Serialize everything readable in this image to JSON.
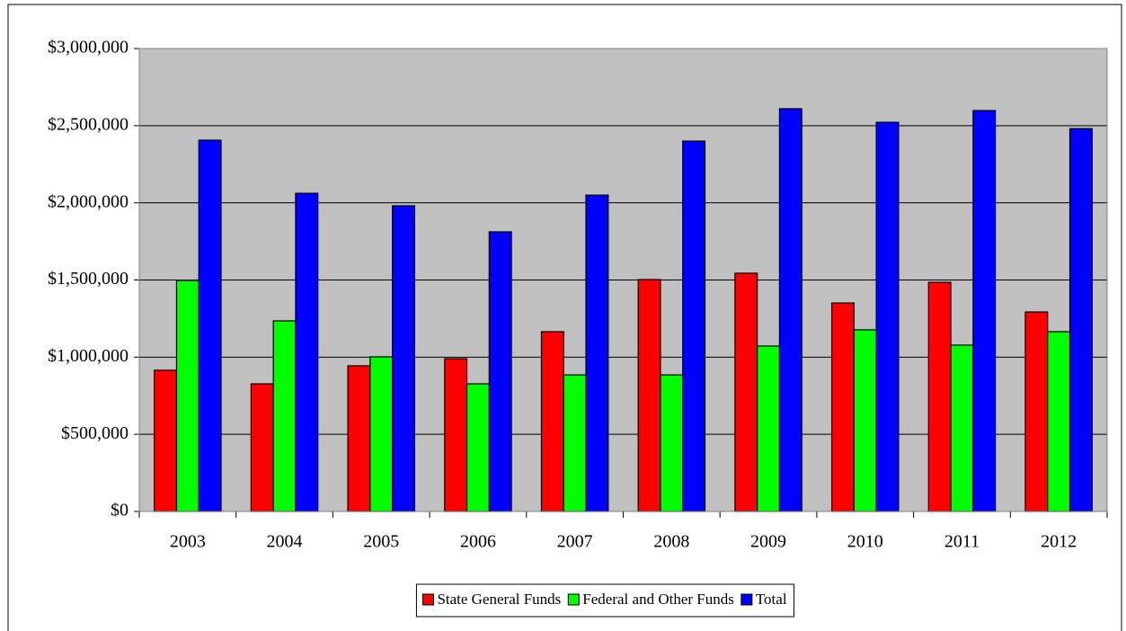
{
  "chart_data": {
    "type": "bar",
    "categories": [
      "2003",
      "2004",
      "2005",
      "2006",
      "2007",
      "2008",
      "2009",
      "2010",
      "2011",
      "2012"
    ],
    "series": [
      {
        "name": "State General Funds",
        "color": "#ff0000",
        "values": [
          915000,
          827000,
          944000,
          990000,
          1165000,
          1503000,
          1544000,
          1351000,
          1485000,
          1293000
        ]
      },
      {
        "name": "Federal and Other Funds",
        "color": "#00ff00",
        "values": [
          1497000,
          1235000,
          1002000,
          827000,
          885000,
          885000,
          1072000,
          1177000,
          1078000,
          1165000
        ]
      },
      {
        "name": "Total",
        "color": "#0000ff",
        "values": [
          2406000,
          2062000,
          1981000,
          1812000,
          2050000,
          2400000,
          2610000,
          2522000,
          2598000,
          2481000
        ]
      }
    ],
    "ylim": [
      0,
      3000000
    ],
    "yticks": [
      {
        "value": 0,
        "label": "$0"
      },
      {
        "value": 500000,
        "label": "$500,000"
      },
      {
        "value": 1000000,
        "label": "$1,000,000"
      },
      {
        "value": 1500000,
        "label": "$1,500,000"
      },
      {
        "value": 2000000,
        "label": "$2,000,000"
      },
      {
        "value": 2500000,
        "label": "$2,500,000"
      },
      {
        "value": 3000000,
        "label": "$3,000,000"
      }
    ],
    "grid": true,
    "background": "#c0c0c0",
    "legend": "bottom"
  }
}
